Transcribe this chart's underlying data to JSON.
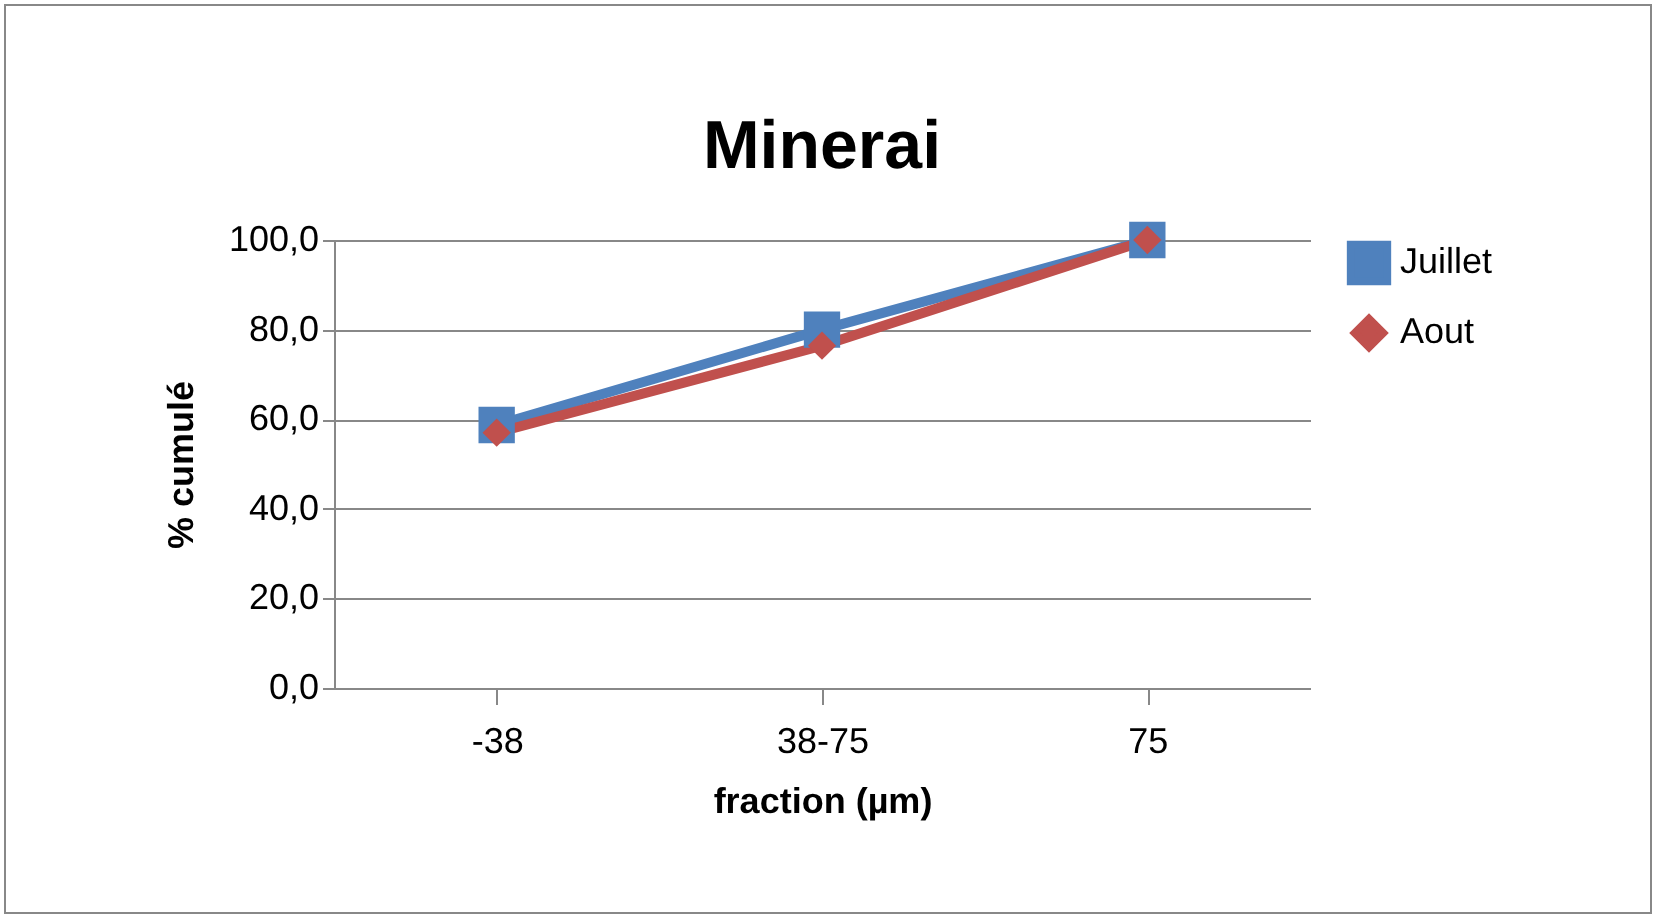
{
  "chart_data": {
    "type": "line",
    "title": "Minerai",
    "xlabel": "fraction (µm)",
    "ylabel": "% cumulé",
    "categories": [
      "-38",
      "38-75",
      "75"
    ],
    "series": [
      {
        "name": "Juillet",
        "color": "#4f81bd",
        "marker": "square",
        "values": [
          58.7,
          80,
          100
        ]
      },
      {
        "name": "Aout",
        "color": "#c0504d",
        "marker": "diamond",
        "values": [
          57,
          76.4,
          100
        ]
      }
    ],
    "ylim": [
      0,
      100
    ],
    "yticks": [
      {
        "value": 0,
        "label": "0,0"
      },
      {
        "value": 20,
        "label": "20,0"
      },
      {
        "value": 40,
        "label": "40,0"
      },
      {
        "value": 60,
        "label": "60,0"
      },
      {
        "value": 80,
        "label": "80,0"
      },
      {
        "value": 100,
        "label": "100,0"
      }
    ],
    "grid": "y",
    "legend": "right",
    "line_style": "solid"
  }
}
